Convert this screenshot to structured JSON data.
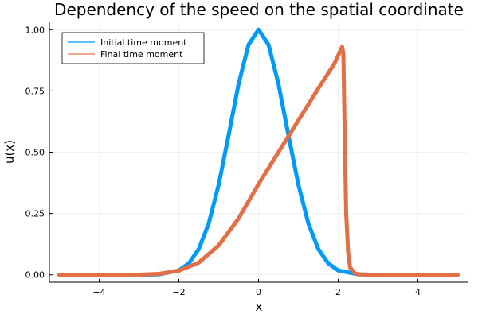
{
  "chart_data": {
    "type": "line",
    "title": "Dependency of the speed on the spatial coordinate",
    "xlabel": "x",
    "ylabel": "u(x)",
    "xlim": [
      -5.25,
      5.25
    ],
    "ylim": [
      -0.03,
      1.03
    ],
    "xticks": [
      -4,
      -2,
      0,
      2,
      4
    ],
    "xtick_labels": [
      "−4",
      "−2",
      "0",
      "2",
      "4"
    ],
    "yticks": [
      0,
      0.25,
      0.5,
      0.75,
      1.0
    ],
    "ytick_labels": [
      "0.00",
      "0.25",
      "0.50",
      "0.75",
      "1.00"
    ],
    "grid": true,
    "legend_position": "top-left",
    "series": [
      {
        "name": "Initial time moment",
        "color": "#009af9",
        "x": [
          -5.0,
          -3.0,
          -2.5,
          -2.0,
          -1.75,
          -1.5,
          -1.25,
          -1.0,
          -0.75,
          -0.5,
          -0.25,
          0.0,
          0.25,
          0.5,
          0.75,
          1.0,
          1.25,
          1.5,
          1.75,
          2.0,
          2.5,
          3.0,
          5.0
        ],
        "y": [
          0.0,
          0.0001,
          0.002,
          0.018,
          0.047,
          0.105,
          0.21,
          0.368,
          0.57,
          0.779,
          0.939,
          1.0,
          0.939,
          0.779,
          0.57,
          0.368,
          0.21,
          0.105,
          0.047,
          0.018,
          0.002,
          0.0001,
          0.0
        ]
      },
      {
        "name": "Final time moment",
        "color": "#e26f46",
        "x": [
          -5.0,
          -3.0,
          -2.5,
          -2.0,
          -1.5,
          -1.0,
          -0.5,
          0.0,
          0.5,
          1.0,
          1.5,
          1.9,
          2.1,
          2.13,
          2.16,
          2.2,
          2.25,
          2.3,
          2.4,
          2.5,
          3.0,
          5.0
        ],
        "y": [
          0.0,
          0.001,
          0.004,
          0.017,
          0.05,
          0.12,
          0.23,
          0.37,
          0.5,
          0.63,
          0.76,
          0.86,
          0.93,
          0.9,
          0.6,
          0.25,
          0.09,
          0.03,
          0.008,
          0.002,
          0.0,
          0.0
        ]
      }
    ]
  }
}
